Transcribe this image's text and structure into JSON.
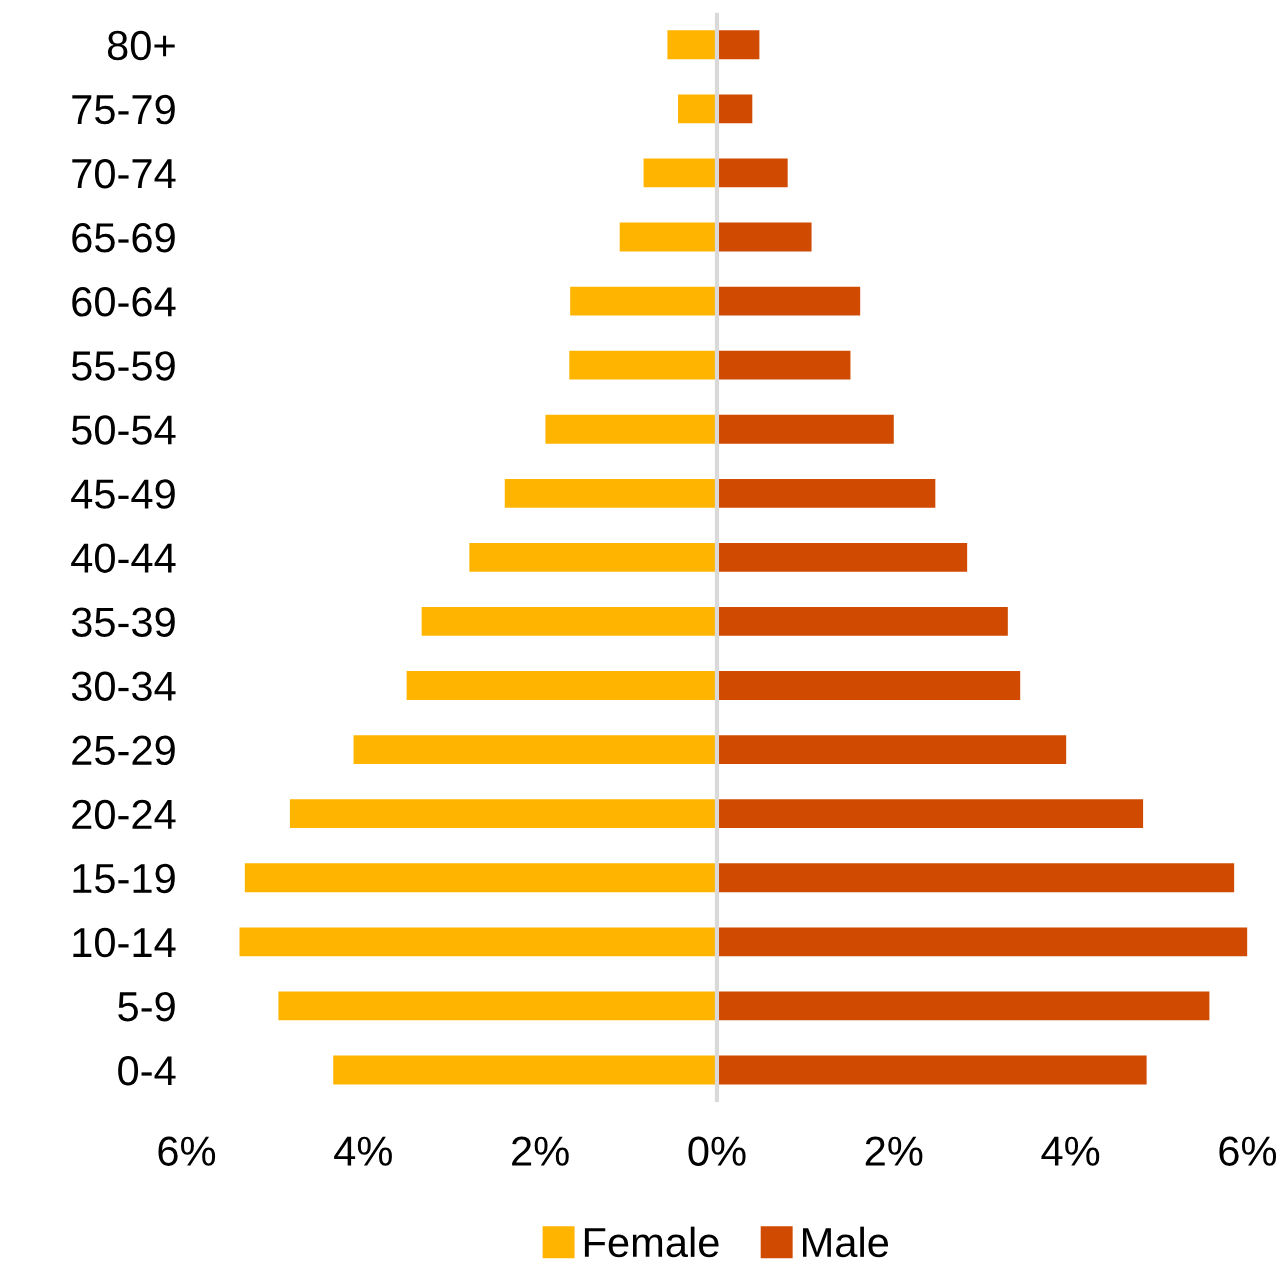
{
  "chart_data": {
    "type": "bar",
    "orientation": "horizontal",
    "stacked": true,
    "categories": [
      "80+",
      "75-79",
      "70-74",
      "65-69",
      "60-64",
      "55-59",
      "50-54",
      "45-49",
      "40-44",
      "35-39",
      "30-34",
      "25-29",
      "20-24",
      "15-19",
      "10-14",
      "5-9",
      "0-4"
    ],
    "series": [
      {
        "name": "Female",
        "color": "#ffb400",
        "values": [
          -0.56,
          -0.44,
          -0.83,
          -1.1,
          -1.66,
          -1.67,
          -1.94,
          -2.4,
          -2.8,
          -3.34,
          -3.51,
          -4.11,
          -4.83,
          -5.34,
          -5.4,
          -4.96,
          -4.34
        ]
      },
      {
        "name": "Male",
        "color": "#d04a02",
        "values": [
          0.48,
          0.4,
          0.8,
          1.07,
          1.62,
          1.51,
          2.0,
          2.47,
          2.83,
          3.29,
          3.43,
          3.95,
          4.82,
          5.85,
          6.0,
          5.57,
          4.86
        ]
      }
    ],
    "xlim": [
      -6,
      6
    ],
    "xticks": [
      {
        "value": -6,
        "label": "6%"
      },
      {
        "value": -4,
        "label": "4%"
      },
      {
        "value": -2,
        "label": "2%"
      },
      {
        "value": 0,
        "label": "0%"
      },
      {
        "value": 2,
        "label": "2%"
      },
      {
        "value": 4,
        "label": "4%"
      },
      {
        "value": 6,
        "label": "6%"
      }
    ],
    "ref_lines": [
      {
        "axis": "x",
        "value": 0,
        "color": "#d9d9d9"
      }
    ],
    "grid": false,
    "legend": "bottom"
  }
}
